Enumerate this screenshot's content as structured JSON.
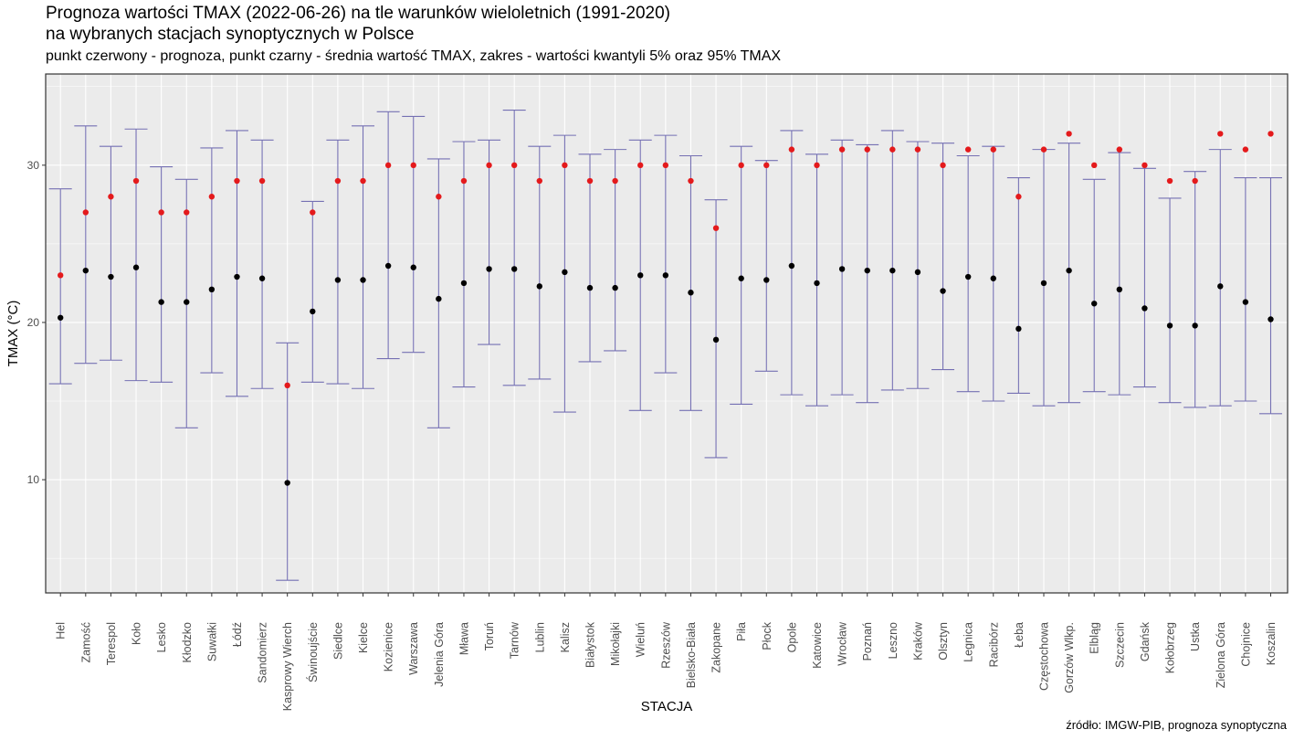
{
  "title_line1": "Prognoza wartości TMAX (2022-06-26) na tle warunków wieloletnich (1991-2020)",
  "title_line2": "na wybranych stacjach synoptycznych w Polsce",
  "subtitle": "punkt czerwony - prognoza, punkt czarny - średnia wartość TMAX, zakres - wartości kwantyli 5% oraz 95% TMAX",
  "source": "źródło: IMGW-PIB, prognoza synoptyczna",
  "colors": {
    "panel": "#ebebeb",
    "grid_major": "#ffffff",
    "errorbar": "#7570b3",
    "forecast_point": "#e41a1c",
    "mean_point": "#000000"
  },
  "chart_data": {
    "type": "errorbar-scatter",
    "xlabel": "STACJA",
    "ylabel": "TMAX (°C)",
    "ylim": [
      2.8,
      35.8
    ],
    "yticks": [
      10,
      20,
      30
    ],
    "grid": true,
    "categories": [
      "Hel",
      "Zamość",
      "Terespol",
      "Koło",
      "Lesko",
      "Kłodzko",
      "Suwałki",
      "Łódź",
      "Sandomierz",
      "Kasprowy Wierch",
      "Świnoujście",
      "Siedlce",
      "Kielce",
      "Kozienice",
      "Warszawa",
      "Jelenia Góra",
      "Mława",
      "Toruń",
      "Tarnów",
      "Lublin",
      "Kalisz",
      "Białystok",
      "Mikołajki",
      "Wieluń",
      "Rzeszów",
      "Bielsko-Biała",
      "Zakopane",
      "Piła",
      "Płock",
      "Opole",
      "Katowice",
      "Wrocław",
      "Poznań",
      "Leszno",
      "Kraków",
      "Olsztyn",
      "Legnica",
      "Racibórz",
      "Łeba",
      "Częstochowa",
      "Gorzów Wlkp.",
      "Elbląg",
      "Szczecin",
      "Gdańsk",
      "Kołobrzeg",
      "Ustka",
      "Zielona Góra",
      "Chojnice",
      "Koszalin"
    ],
    "series": [
      {
        "name": "prognoza",
        "values": [
          23,
          27,
          28,
          29,
          27,
          27,
          28,
          29,
          29,
          16,
          27,
          29,
          29,
          30,
          30,
          28,
          29,
          30,
          30,
          29,
          30,
          29,
          29,
          30,
          30,
          29,
          26,
          30,
          30,
          31,
          30,
          31,
          31,
          31,
          31,
          30,
          31,
          31,
          28,
          31,
          32,
          30,
          31,
          30,
          29,
          29,
          32,
          31,
          32
        ]
      },
      {
        "name": "średnia",
        "values": [
          20.3,
          23.3,
          22.9,
          23.5,
          21.3,
          21.3,
          22.1,
          22.9,
          22.8,
          9.8,
          20.7,
          22.7,
          22.7,
          23.6,
          23.5,
          21.5,
          22.5,
          23.4,
          23.4,
          22.3,
          23.2,
          22.2,
          22.2,
          23.0,
          23.0,
          21.9,
          18.9,
          22.8,
          22.7,
          23.6,
          22.5,
          23.4,
          23.3,
          23.3,
          23.2,
          22.0,
          22.9,
          22.8,
          19.6,
          22.5,
          23.3,
          21.2,
          22.1,
          20.9,
          19.8,
          19.8,
          22.3,
          21.3,
          20.2
        ]
      },
      {
        "name": "kwantyl 5%",
        "values": [
          16.1,
          17.4,
          17.6,
          16.3,
          16.2,
          13.3,
          16.8,
          15.3,
          15.8,
          3.6,
          16.2,
          16.1,
          15.8,
          17.7,
          18.1,
          13.3,
          15.9,
          18.6,
          16.0,
          16.4,
          14.3,
          17.5,
          18.2,
          14.4,
          16.8,
          14.4,
          11.4,
          14.8,
          16.9,
          15.4,
          14.7,
          15.4,
          14.9,
          15.7,
          15.8,
          17.0,
          15.6,
          15.0,
          15.5,
          14.7,
          14.9,
          15.6,
          15.4,
          15.9,
          14.9,
          14.6,
          14.7,
          15.0,
          14.2
        ]
      },
      {
        "name": "kwantyl 95%",
        "values": [
          28.5,
          32.5,
          31.2,
          32.3,
          29.9,
          29.1,
          31.1,
          32.2,
          31.6,
          18.7,
          27.7,
          31.6,
          32.5,
          33.4,
          33.1,
          30.4,
          31.5,
          31.6,
          33.5,
          31.2,
          31.9,
          30.7,
          31.0,
          31.6,
          31.9,
          30.6,
          27.8,
          31.2,
          30.3,
          32.2,
          30.7,
          31.6,
          31.3,
          32.2,
          31.5,
          31.4,
          30.6,
          31.2,
          29.2,
          31.0,
          31.4,
          29.1,
          30.8,
          29.8,
          27.9,
          29.6,
          31.0,
          29.2,
          29.2
        ]
      }
    ]
  }
}
